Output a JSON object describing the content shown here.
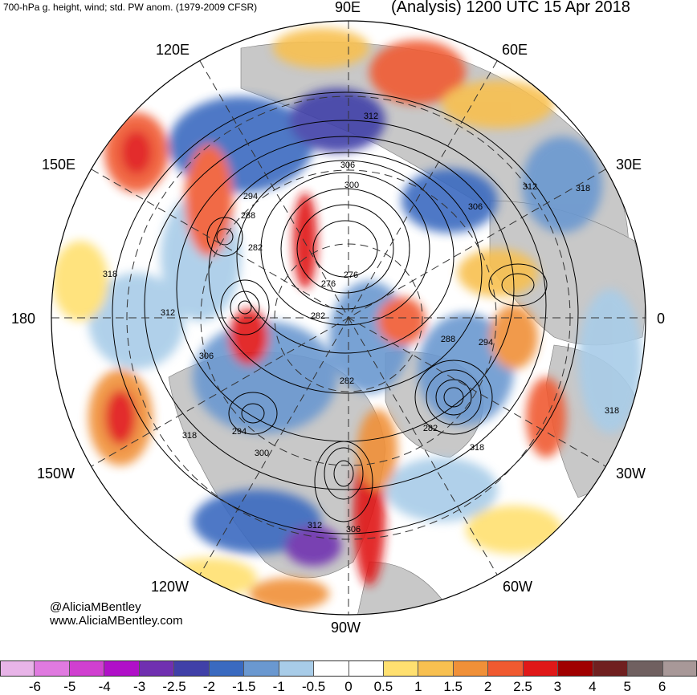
{
  "header": {
    "product_title": "700-hPa g. height, wind; std. PW anom. (1979-2009 CFSR)",
    "valid_time": "(Analysis) 1200 UTC 15 Apr 2018"
  },
  "credits": {
    "handle": "@AliciaMBentley",
    "website": "www.AliciaMBentley.com"
  },
  "longitude_labels": [
    {
      "text": "90E",
      "name": "lon-label-90e"
    },
    {
      "text": "60E",
      "name": "lon-label-60e"
    },
    {
      "text": "30E",
      "name": "lon-label-30e"
    },
    {
      "text": "0",
      "name": "lon-label-0"
    },
    {
      "text": "30W",
      "name": "lon-label-30w"
    },
    {
      "text": "60W",
      "name": "lon-label-60w"
    },
    {
      "text": "90W",
      "name": "lon-label-90w"
    },
    {
      "text": "120W",
      "name": "lon-label-120w"
    },
    {
      "text": "150W",
      "name": "lon-label-150w"
    },
    {
      "text": "180",
      "name": "lon-label-180"
    },
    {
      "text": "150E",
      "name": "lon-label-150e"
    },
    {
      "text": "120E",
      "name": "lon-label-120e"
    }
  ],
  "contour_labels": [
    "312",
    "306",
    "300",
    "294",
    "288",
    "282",
    "276",
    "282",
    "288",
    "294",
    "306",
    "312",
    "318",
    "306",
    "318",
    "282",
    "318",
    "294",
    "300",
    "312",
    "306",
    "318",
    "282",
    "312",
    "318",
    "276"
  ],
  "colorbar": {
    "colors": [
      "#e8b4e8",
      "#e07ae0",
      "#d040d0",
      "#b010c8",
      "#7030b0",
      "#4040a8",
      "#3a6ac0",
      "#6a98d0",
      "#a8cce8",
      "#ffffff",
      "#ffffff",
      "#ffe070",
      "#f8c050",
      "#f09038",
      "#f05a30",
      "#e01818",
      "#a00000",
      "#702020",
      "#706060",
      "#a89898"
    ],
    "tick_labels": [
      "-6",
      "-5",
      "-4",
      "-3",
      "-2.5",
      "-2",
      "-1.5",
      "-1",
      "-0.5",
      "0",
      "0.5",
      "1",
      "1.5",
      "2",
      "2.5",
      "3",
      "4",
      "5",
      "6"
    ]
  },
  "map_colors": {
    "ocean_background": "#ffffff",
    "land": "#c8c8c8",
    "contour": "#000000",
    "grid": "#333333"
  }
}
